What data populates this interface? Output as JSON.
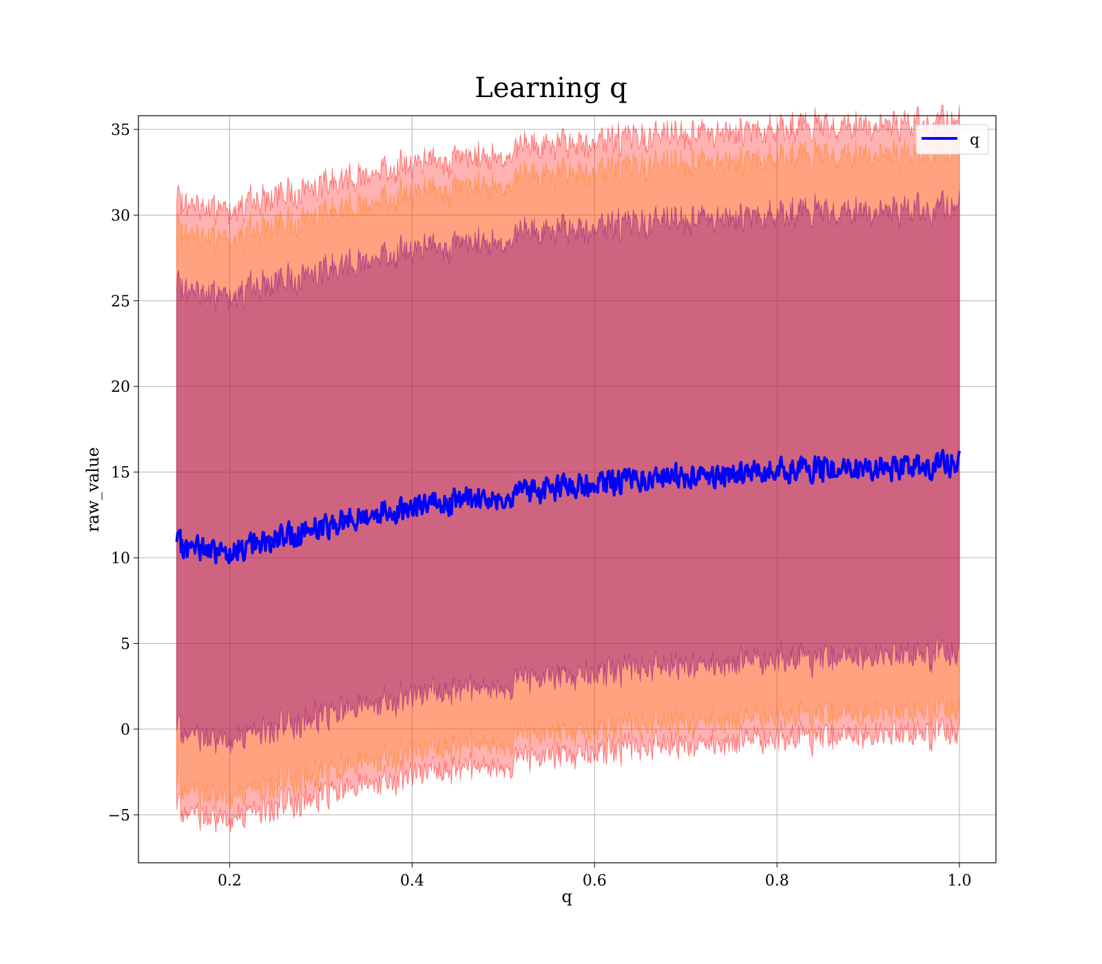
{
  "chart_data": {
    "type": "line",
    "title": "Learning q",
    "xlabel": "q",
    "ylabel": "raw_value",
    "xlim": [
      0.1,
      1.04
    ],
    "ylim": [
      -7.8,
      35.8
    ],
    "xticks": [
      0.2,
      0.4,
      0.6,
      0.8,
      1.0
    ],
    "xtick_labels": [
      "0.2",
      "0.4",
      "0.6",
      "0.8",
      "1.0"
    ],
    "yticks": [
      -5,
      0,
      5,
      10,
      15,
      20,
      25,
      30,
      35
    ],
    "ytick_labels": [
      "−5",
      "0",
      "5",
      "10",
      "15",
      "20",
      "25",
      "30",
      "35"
    ],
    "grid": true,
    "legend_position": "upper-right",
    "colors": {
      "mean_line": "#0000ff",
      "band_outer": "#ff0000",
      "band_middle": "#ff7f0e",
      "band_inner": "#800080"
    },
    "series": [
      {
        "name": "q",
        "x": [
          0.142,
          0.15,
          0.16,
          0.17,
          0.18,
          0.19,
          0.2,
          0.21,
          0.22,
          0.23,
          0.24,
          0.25,
          0.26,
          0.27,
          0.28,
          0.29,
          0.3,
          0.32,
          0.34,
          0.36,
          0.38,
          0.4,
          0.42,
          0.44,
          0.46,
          0.48,
          0.5,
          0.52,
          0.54,
          0.56,
          0.58,
          0.6,
          0.62,
          0.64,
          0.66,
          0.68,
          0.7,
          0.72,
          0.74,
          0.76,
          0.78,
          0.8,
          0.82,
          0.84,
          0.86,
          0.88,
          0.9,
          0.92,
          0.94,
          0.96,
          0.98,
          1.0
        ],
        "values": [
          10.8,
          10.5,
          10.4,
          10.7,
          10.2,
          10.5,
          10.4,
          10.6,
          10.5,
          10.9,
          11.0,
          11.1,
          11.2,
          11.4,
          11.6,
          11.7,
          11.8,
          12.1,
          12.3,
          12.6,
          12.8,
          13.0,
          13.1,
          13.2,
          13.4,
          13.5,
          13.6,
          13.8,
          13.9,
          14.1,
          14.2,
          14.3,
          14.4,
          14.5,
          14.6,
          14.7,
          14.8,
          14.8,
          14.9,
          15.0,
          15.0,
          15.1,
          15.1,
          15.1,
          15.2,
          15.2,
          15.2,
          15.2,
          15.3,
          15.3,
          15.4,
          15.5
        ],
        "band_offsets": {
          "outer": [
            15.6,
            20.0
          ],
          "middle": [
            14.3,
            18.3
          ],
          "inner": [
            11.0,
            15.0
          ]
        }
      }
    ]
  }
}
